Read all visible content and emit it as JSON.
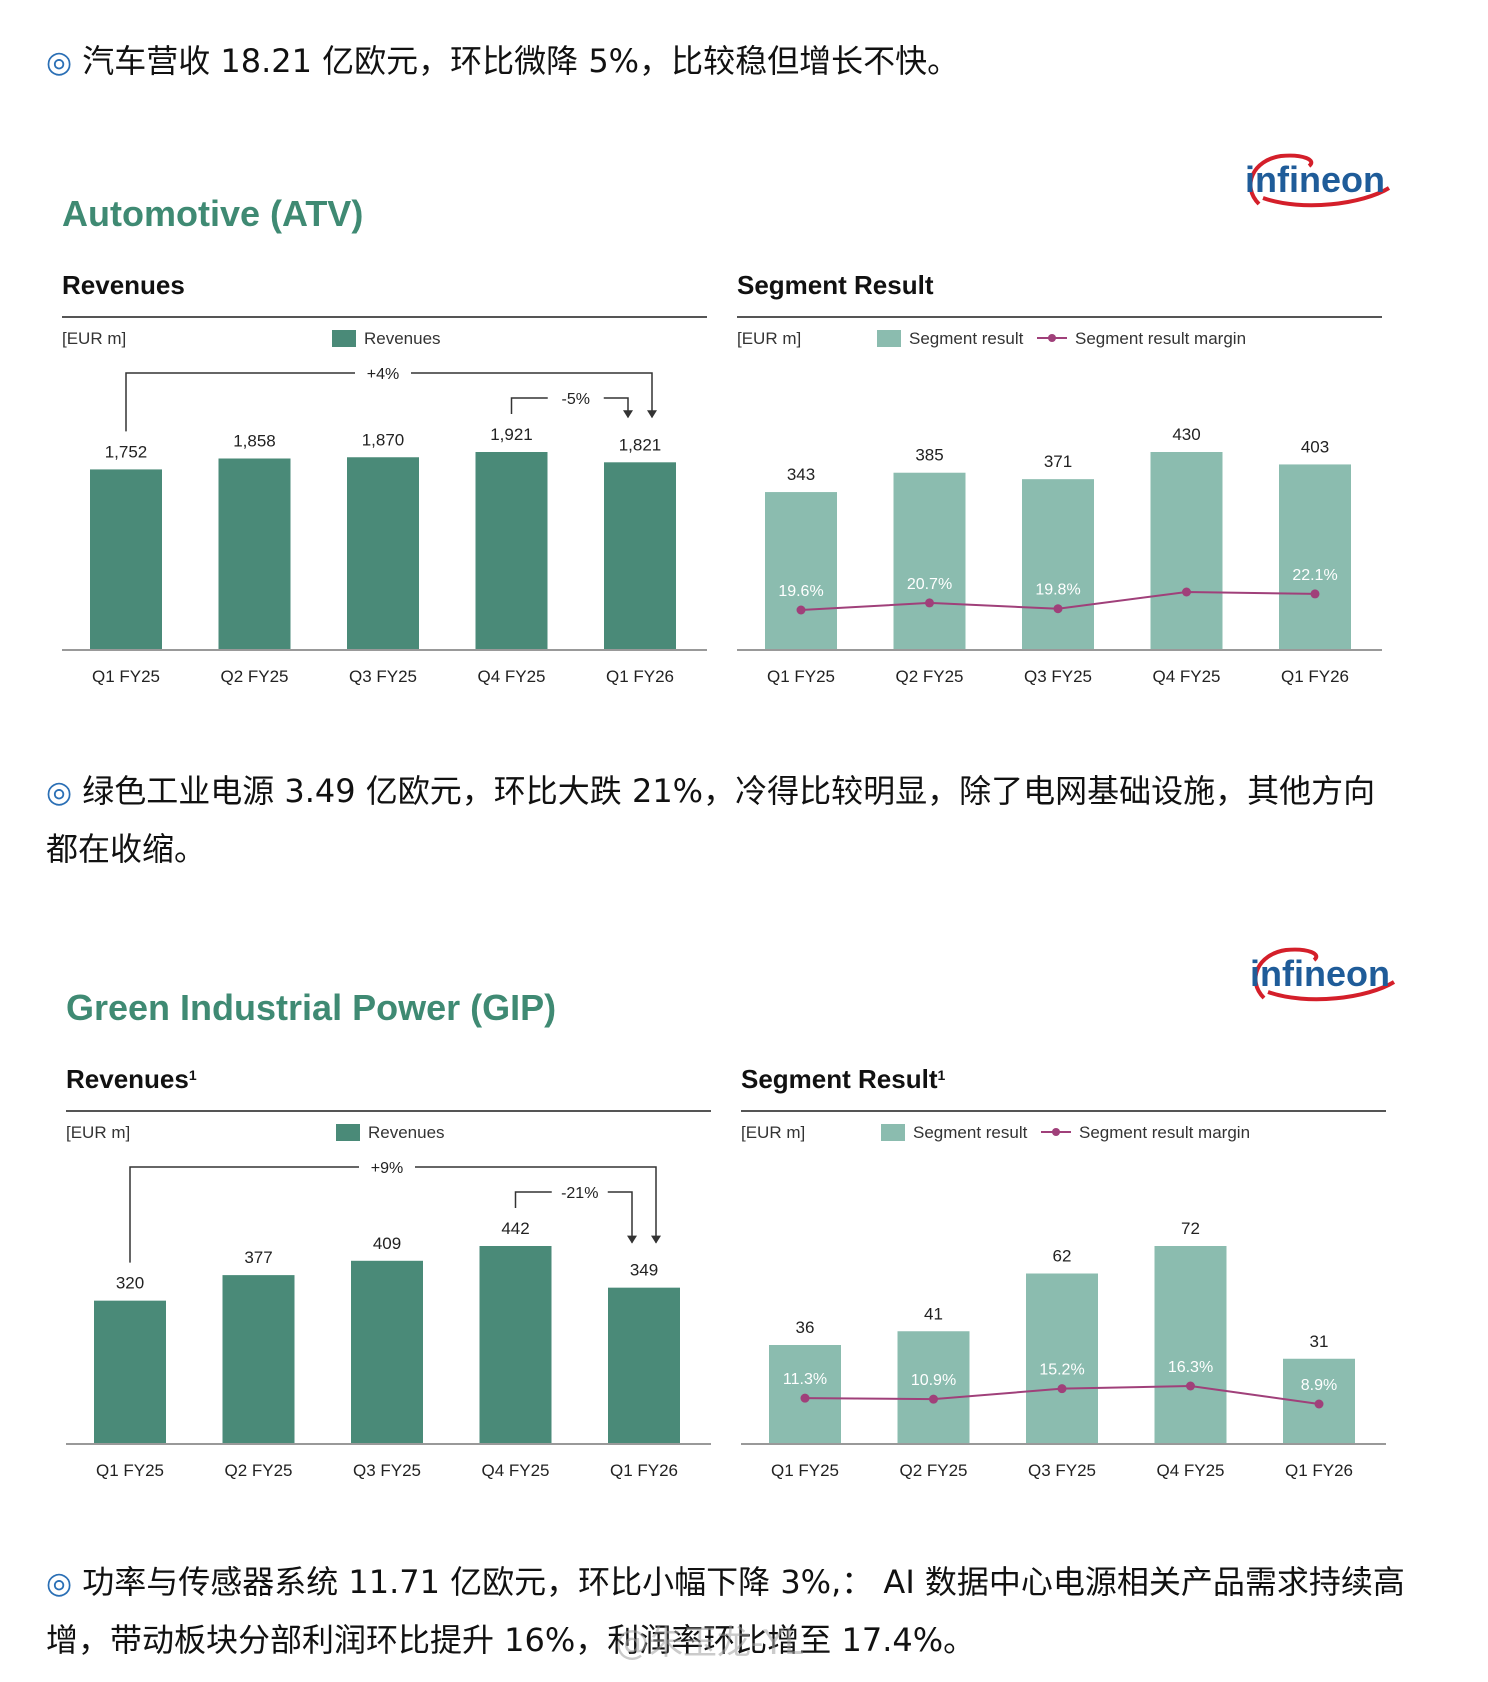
{
  "paragraphs": {
    "p1": "汽车营收 18.21 亿欧元，环比微降 5%，比较稳但增长不快。",
    "p2": "绿色工业电源 3.49 亿欧元，环比大跌 21%，冷得比较明显，除了电网基础设施，其他方向都在收缩。",
    "p3": "功率与传感器系统 11.71 亿欧元，环比小幅下降 3%,： AI 数据中心电源相关产品需求持续高增，带动板块分部利润环比提升 16%，利润率环比增至 17.4%。",
    "bullet": "◎"
  },
  "brand": {
    "logo_text": "infineon",
    "logo_color": "#1f5c99",
    "swoosh_color": "#d41f2a"
  },
  "watermark": "@朱玉龙-YL",
  "colors": {
    "revenue_bar": "#4a8a78",
    "segment_bar": "#8bbcaf",
    "margin_line": "#a0407a",
    "title": "#3f8a73"
  },
  "chart_data": [
    {
      "section_title": "Automotive (ATV)",
      "type": "bar",
      "title": "Revenues",
      "unit": "[EUR m]",
      "legend": [
        "Revenues"
      ],
      "categories": [
        "Q1 FY25",
        "Q2 FY25",
        "Q3 FY25",
        "Q4 FY25",
        "Q1 FY26"
      ],
      "values": [
        1752,
        1858,
        1870,
        1921,
        1821
      ],
      "value_labels": [
        "1,752",
        "1,858",
        "1,870",
        "1,921",
        "1,821"
      ],
      "ylim": [
        0,
        1921
      ],
      "annotations": [
        {
          "text": "+4%",
          "from": "Q1 FY25",
          "to": "Q1 FY26"
        },
        {
          "text": "-5%",
          "from": "Q4 FY25",
          "to": "Q1 FY26"
        }
      ]
    },
    {
      "type": "bar",
      "title": "Segment Result",
      "unit": "[EUR m]",
      "legend": [
        "Segment result",
        "Segment result margin"
      ],
      "categories": [
        "Q1 FY25",
        "Q2 FY25",
        "Q3 FY25",
        "Q4 FY25",
        "Q1 FY26"
      ],
      "values": [
        343,
        385,
        371,
        430,
        403
      ],
      "value_labels": [
        "343",
        "385",
        "371",
        "430",
        "403"
      ],
      "margin_values": [
        19.6,
        20.7,
        19.8,
        22.4,
        22.1
      ],
      "margin_labels": [
        "19.6%",
        "20.7%",
        "19.8%",
        "",
        "22.1%"
      ],
      "ylim": [
        0,
        430
      ]
    },
    {
      "section_title": "Green Industrial Power (GIP)",
      "type": "bar",
      "title": "Revenues",
      "title_sup": "1",
      "unit": "[EUR m]",
      "legend": [
        "Revenues"
      ],
      "categories": [
        "Q1 FY25",
        "Q2 FY25",
        "Q3 FY25",
        "Q4 FY25",
        "Q1 FY26"
      ],
      "values": [
        320,
        377,
        409,
        442,
        349
      ],
      "value_labels": [
        "320",
        "377",
        "409",
        "442",
        "349"
      ],
      "ylim": [
        0,
        442
      ],
      "annotations": [
        {
          "text": "+9%",
          "from": "Q1 FY25",
          "to": "Q1 FY26"
        },
        {
          "text": "-21%",
          "from": "Q4 FY25",
          "to": "Q1 FY26"
        }
      ]
    },
    {
      "type": "bar",
      "title": "Segment Result",
      "title_sup": "1",
      "unit": "[EUR m]",
      "legend": [
        "Segment result",
        "Segment result margin"
      ],
      "categories": [
        "Q1 FY25",
        "Q2 FY25",
        "Q3 FY25",
        "Q4 FY25",
        "Q1 FY26"
      ],
      "values": [
        36,
        41,
        62,
        72,
        31
      ],
      "value_labels": [
        "36",
        "41",
        "62",
        "72",
        "31"
      ],
      "margin_values": [
        11.3,
        10.9,
        15.2,
        16.3,
        8.9
      ],
      "margin_labels": [
        "11.3%",
        "10.9%",
        "15.2%",
        "16.3%",
        "8.9%"
      ],
      "ylim": [
        0,
        72
      ]
    }
  ]
}
